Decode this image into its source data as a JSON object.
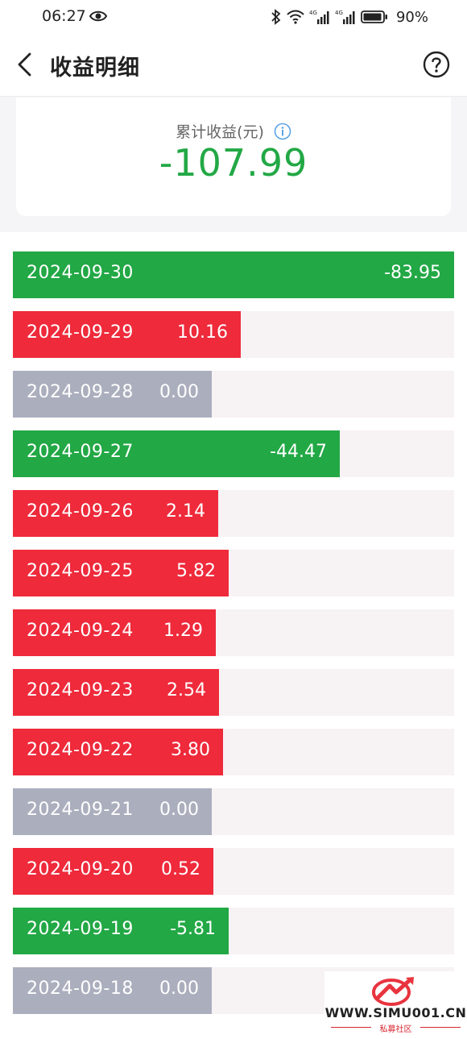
{
  "status_bar": {
    "time": "06:27",
    "battery": "90%",
    "icons": [
      "eye-icon",
      "bluetooth-icon",
      "wifi-icon",
      "signal-4g-icon",
      "signal-4g-icon",
      "battery-icon"
    ]
  },
  "nav": {
    "title": "收益明细",
    "back_icon": "back-icon",
    "help_icon": "help-icon"
  },
  "summary": {
    "label": "累计收益(元)",
    "value": "-107.99",
    "value_color": "#22a845"
  },
  "colors": {
    "positive": "#ee2a3b",
    "negative": "#22a845",
    "zero": "#abaebd",
    "track": "#f7f2f4"
  },
  "rows": [
    {
      "date": "2024-09-30",
      "value": "-83.95"
    },
    {
      "date": "2024-09-29",
      "value": "10.16"
    },
    {
      "date": "2024-09-28",
      "value": "0.00"
    },
    {
      "date": "2024-09-27",
      "value": "-44.47"
    },
    {
      "date": "2024-09-26",
      "value": "2.14"
    },
    {
      "date": "2024-09-25",
      "value": "5.82"
    },
    {
      "date": "2024-09-24",
      "value": "1.29"
    },
    {
      "date": "2024-09-23",
      "value": "2.54"
    },
    {
      "date": "2024-09-22",
      "value": "3.80"
    },
    {
      "date": "2024-09-21",
      "value": "0.00"
    },
    {
      "date": "2024-09-20",
      "value": "0.52"
    },
    {
      "date": "2024-09-19",
      "value": "-5.81"
    },
    {
      "date": "2024-09-18",
      "value": "0.00"
    }
  ],
  "watermark": {
    "url": "WWW.SIMU001.CN",
    "sub": "私募社区"
  }
}
